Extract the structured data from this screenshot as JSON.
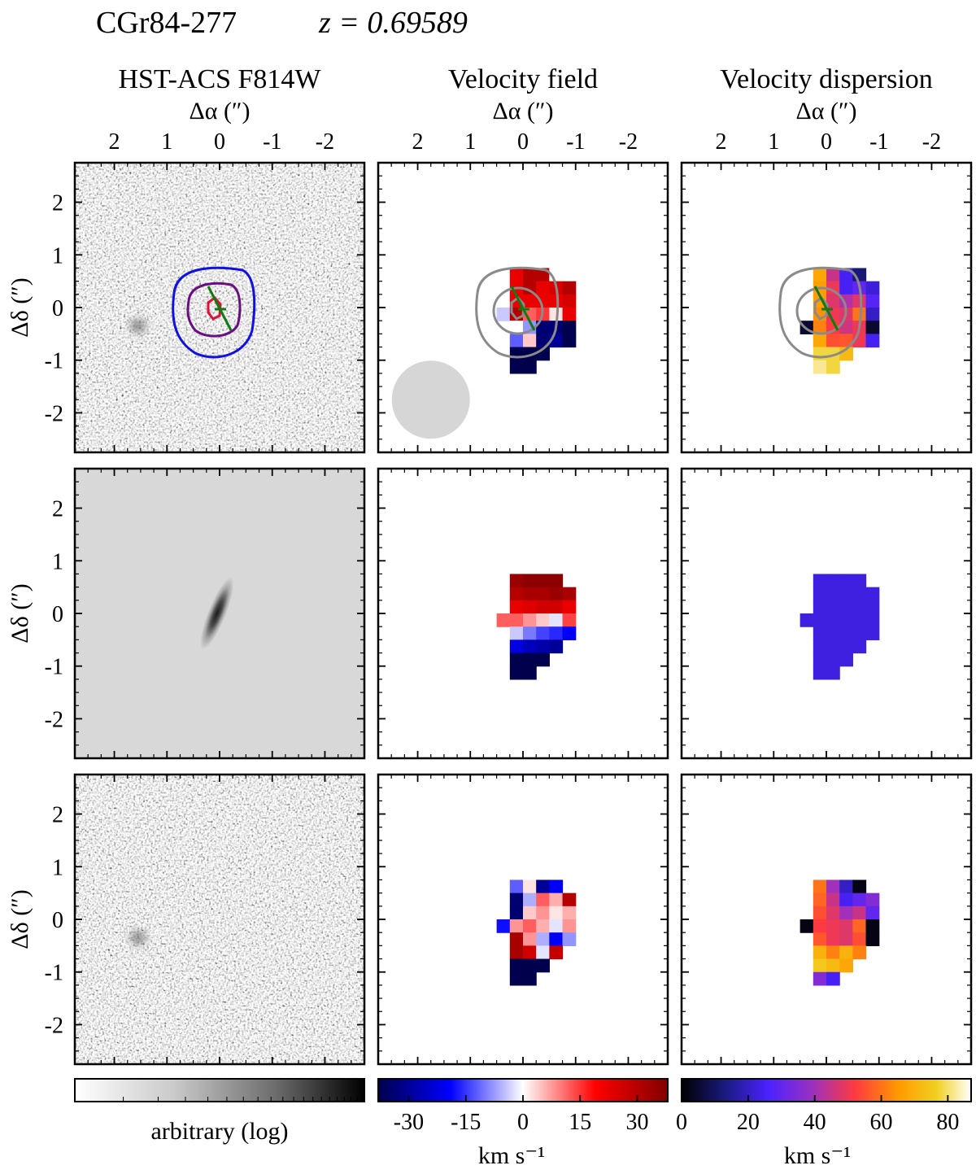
{
  "header": {
    "object_name": "CGr84-277",
    "redshift_label": "z = 0.69589"
  },
  "columns": [
    {
      "title": "HST-ACS F814W",
      "xlabel": "Δα (″)"
    },
    {
      "title": "Velocity field",
      "xlabel": "Δα (″)"
    },
    {
      "title": "Velocity dispersion",
      "xlabel": "Δα (″)"
    }
  ],
  "ylabel": "Δδ (″)",
  "axes": {
    "x_ticks": [
      "2",
      "1",
      "0",
      "-1",
      "-2"
    ],
    "y_ticks": [
      "2",
      "1",
      "0",
      "-1",
      "-2"
    ],
    "xlim": [
      2.75,
      -2.75
    ],
    "ylim": [
      -2.75,
      2.75
    ]
  },
  "colorbars": [
    {
      "label": "arbitrary (log)",
      "ticks": [],
      "cmap": "gray-log"
    },
    {
      "label": "km s⁻¹",
      "ticks": [
        "-30",
        "-15",
        "0",
        "15",
        "30"
      ],
      "vmin": -38,
      "vmax": 38,
      "cmap": "seismic"
    },
    {
      "label": "km s⁻¹",
      "ticks": [
        "0",
        "20",
        "40",
        "60",
        "80"
      ],
      "vmin": 0,
      "vmax": 87,
      "cmap": "gnuplot2"
    }
  ],
  "colors": {
    "contour_outer": "#1010e0",
    "contour_mid": "#6a0d83",
    "contour_inner": "#e0103a",
    "kinematic_axis": "#127a12",
    "contour_gray": "#8a8a8a",
    "psf_disk": "#d6d6d6"
  },
  "chart_data": {
    "type": "heatmap",
    "grid": {
      "x0": 0.5,
      "y0": 0.75,
      "pixel": 0.25,
      "rows": 8,
      "cols": 7
    },
    "panels": [
      {
        "row": "observed",
        "column": "image",
        "kind": "noise-image",
        "contours": [
          "outer",
          "mid",
          "inner"
        ]
      },
      {
        "row": "observed",
        "column": "velocity",
        "values": [
          [
            null,
            22,
            30,
            30,
            0,
            null,
            null
          ],
          [
            null,
            22,
            30,
            22,
            25,
            30,
            null
          ],
          [
            null,
            22,
            22,
            22,
            22,
            25,
            null
          ],
          [
            -4,
            30,
            12,
            15,
            2,
            22,
            null
          ],
          [
            null,
            0,
            -8,
            -34,
            -34,
            -38,
            null
          ],
          [
            null,
            -12,
            4,
            -34,
            -30,
            -38,
            null
          ],
          [
            null,
            -38,
            -38,
            -38,
            null,
            null,
            null
          ],
          [
            null,
            -38,
            -38,
            null,
            null,
            null,
            null
          ]
        ]
      },
      {
        "row": "observed",
        "column": "dispersion",
        "values": [
          [
            null,
            68,
            45,
            25,
            12,
            null,
            null
          ],
          [
            null,
            66,
            50,
            25,
            30,
            22,
            null
          ],
          [
            null,
            66,
            48,
            42,
            48,
            28,
            null
          ],
          [
            null,
            64,
            50,
            48,
            60,
            20,
            null
          ],
          [
            5,
            62,
            52,
            46,
            50,
            5,
            null
          ],
          [
            null,
            68,
            55,
            56,
            50,
            25,
            null
          ],
          [
            null,
            78,
            78,
            72,
            null,
            null,
            null
          ],
          [
            null,
            82,
            78,
            null,
            null,
            null,
            null
          ]
        ]
      },
      {
        "row": "model",
        "column": "image",
        "kind": "inclined-disk"
      },
      {
        "row": "model",
        "column": "velocity",
        "values": [
          [
            null,
            34,
            36,
            36,
            36,
            null,
            null
          ],
          [
            null,
            30,
            32,
            32,
            34,
            32,
            null
          ],
          [
            null,
            22,
            24,
            26,
            26,
            22,
            null
          ],
          [
            12,
            12,
            8,
            4,
            -2,
            14,
            null
          ],
          [
            null,
            -4,
            -10,
            -14,
            -16,
            -20,
            null
          ],
          [
            null,
            -22,
            -26,
            -28,
            -30,
            null,
            null
          ],
          [
            null,
            -38,
            -38,
            -38,
            null,
            null,
            null
          ],
          [
            null,
            -38,
            -38,
            null,
            null,
            null,
            null
          ]
        ]
      },
      {
        "row": "model",
        "column": "dispersion",
        "values": [
          [
            null,
            23,
            23,
            23,
            23,
            null,
            null
          ],
          [
            null,
            23,
            23,
            23,
            23,
            23,
            null
          ],
          [
            null,
            23,
            23,
            23,
            23,
            23,
            null
          ],
          [
            23,
            23,
            23,
            23,
            23,
            23,
            null
          ],
          [
            null,
            23,
            23,
            23,
            23,
            23,
            null
          ],
          [
            null,
            23,
            23,
            23,
            23,
            null,
            null
          ],
          [
            null,
            23,
            23,
            23,
            null,
            null,
            null
          ],
          [
            null,
            23,
            23,
            null,
            null,
            null,
            null
          ]
        ]
      },
      {
        "row": "residual",
        "column": "image",
        "kind": "noise-image"
      },
      {
        "row": "residual",
        "column": "velocity",
        "values": [
          [
            null,
            -12,
            2,
            -30,
            -20,
            null,
            null
          ],
          [
            null,
            -34,
            -6,
            12,
            6,
            30,
            null
          ],
          [
            null,
            -34,
            4,
            8,
            2,
            6,
            null
          ],
          [
            -18,
            8,
            12,
            6,
            -2,
            8,
            null
          ],
          [
            null,
            32,
            8,
            -6,
            -20,
            -8,
            null
          ],
          [
            null,
            32,
            26,
            -2,
            28,
            null,
            null
          ],
          [
            null,
            -38,
            -38,
            -38,
            null,
            null,
            null
          ],
          [
            null,
            -38,
            -38,
            null,
            null,
            null,
            null
          ]
        ]
      },
      {
        "row": "residual",
        "column": "dispersion",
        "values": [
          [
            null,
            60,
            40,
            20,
            2,
            null,
            null
          ],
          [
            null,
            58,
            45,
            25,
            30,
            35,
            null
          ],
          [
            null,
            55,
            48,
            40,
            45,
            30,
            null
          ],
          [
            2,
            52,
            50,
            48,
            58,
            2,
            null
          ],
          [
            null,
            56,
            50,
            48,
            55,
            2,
            null
          ],
          [
            null,
            70,
            62,
            70,
            62,
            null,
            null
          ],
          [
            null,
            75,
            72,
            68,
            null,
            null,
            null
          ],
          [
            null,
            35,
            25,
            null,
            null,
            null,
            null
          ]
        ]
      }
    ]
  }
}
